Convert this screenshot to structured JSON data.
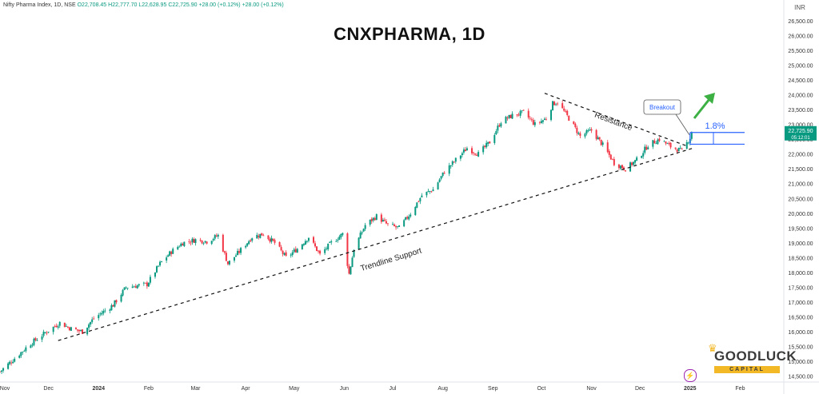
{
  "legend": {
    "symbol": "Nifty Pharma Index, 1D, NSE",
    "open": "O22,708.45",
    "high": "H22,777.70",
    "low": "L22,628.95",
    "close": "C22,725.90",
    "change": "+28.00 (+0.12%)",
    "change2": "+28.00 (+0.12%)"
  },
  "price_tag": {
    "price": "22,725.90",
    "countdown": "05:12:01"
  },
  "brand": {
    "name": "GOODLUCK",
    "sub": "CAPITAL"
  },
  "chart_data": {
    "type": "candlestick",
    "title": "CNXPHARMA, 1D",
    "currency": "INR",
    "ylim": [
      14300,
      27200
    ],
    "y_ticks": [
      14500,
      15000,
      15500,
      16000,
      16500,
      17000,
      17500,
      18000,
      18500,
      19000,
      19500,
      20000,
      20500,
      21000,
      21500,
      22000,
      22500,
      23000,
      23500,
      24000,
      24500,
      25000,
      25500,
      26000,
      26500
    ],
    "y_tick_labels": [
      "14,500.00",
      "15,000.00",
      "15,500.00",
      "16,000.00",
      "16,500.00",
      "17,000.00",
      "17,500.00",
      "18,000.00",
      "18,500.00",
      "19,000.00",
      "19,500.00",
      "20,000.00",
      "20,500.00",
      "21,000.00",
      "21,500.00",
      "22,000.00",
      "22,500.00",
      "23,000.00",
      "23,500.00",
      "24,000.00",
      "24,500.00",
      "25,000.00",
      "25,500.00",
      "26,000.00",
      "26,500.00"
    ],
    "x_labels": [
      "Nov",
      "Dec",
      "2024",
      "Feb",
      "Mar",
      "Apr",
      "May",
      "Jun",
      "Jul",
      "Aug",
      "Sep",
      "Oct",
      "Nov",
      "Dec",
      "2025",
      "Feb"
    ],
    "x_start": "2023-11-01",
    "x_end": "2025-02-28",
    "x_label_dates": [
      "2023-11-01",
      "2023-12-01",
      "2024-01-01",
      "2024-02-01",
      "2024-03-01",
      "2024-04-01",
      "2024-05-01",
      "2024-06-01",
      "2024-07-01",
      "2024-08-01",
      "2024-09-01",
      "2024-10-01",
      "2024-11-01",
      "2024-12-01",
      "2025-01-01",
      "2025-02-01"
    ],
    "close_path": [
      {
        "date": "2023-11-01",
        "close": 14650
      },
      {
        "date": "2023-11-10",
        "close": 15100
      },
      {
        "date": "2023-11-20",
        "close": 15600
      },
      {
        "date": "2023-11-30",
        "close": 16000
      },
      {
        "date": "2023-12-08",
        "close": 16300
      },
      {
        "date": "2023-12-15",
        "close": 16100
      },
      {
        "date": "2023-12-22",
        "close": 16000
      },
      {
        "date": "2023-12-29",
        "close": 16450
      },
      {
        "date": "2024-01-10",
        "close": 16900
      },
      {
        "date": "2024-01-18",
        "close": 17500
      },
      {
        "date": "2024-01-31",
        "close": 17600
      },
      {
        "date": "2024-02-08",
        "close": 18300
      },
      {
        "date": "2024-02-15",
        "close": 18700
      },
      {
        "date": "2024-02-22",
        "close": 19000
      },
      {
        "date": "2024-03-01",
        "close": 19100
      },
      {
        "date": "2024-03-08",
        "close": 19050
      },
      {
        "date": "2024-03-15",
        "close": 19250
      },
      {
        "date": "2024-03-21",
        "close": 18300
      },
      {
        "date": "2024-03-28",
        "close": 18700
      },
      {
        "date": "2024-04-05",
        "close": 19200
      },
      {
        "date": "2024-04-12",
        "close": 19300
      },
      {
        "date": "2024-04-19",
        "close": 19000
      },
      {
        "date": "2024-04-26",
        "close": 18500
      },
      {
        "date": "2024-05-03",
        "close": 18800
      },
      {
        "date": "2024-05-10",
        "close": 19200
      },
      {
        "date": "2024-05-17",
        "close": 18600
      },
      {
        "date": "2024-05-24",
        "close": 19000
      },
      {
        "date": "2024-05-31",
        "close": 19300
      },
      {
        "date": "2024-06-04",
        "close": 17950
      },
      {
        "date": "2024-06-07",
        "close": 18800
      },
      {
        "date": "2024-06-14",
        "close": 19600
      },
      {
        "date": "2024-06-21",
        "close": 19900
      },
      {
        "date": "2024-06-28",
        "close": 19600
      },
      {
        "date": "2024-07-05",
        "close": 19500
      },
      {
        "date": "2024-07-12",
        "close": 20000
      },
      {
        "date": "2024-07-19",
        "close": 20600
      },
      {
        "date": "2024-07-26",
        "close": 20800
      },
      {
        "date": "2024-08-02",
        "close": 21400
      },
      {
        "date": "2024-08-09",
        "close": 21800
      },
      {
        "date": "2024-08-16",
        "close": 22200
      },
      {
        "date": "2024-08-23",
        "close": 22000
      },
      {
        "date": "2024-08-30",
        "close": 22400
      },
      {
        "date": "2024-09-06",
        "close": 23100
      },
      {
        "date": "2024-09-13",
        "close": 23300
      },
      {
        "date": "2024-09-20",
        "close": 23400
      },
      {
        "date": "2024-09-27",
        "close": 23000
      },
      {
        "date": "2024-10-04",
        "close": 23200
      },
      {
        "date": "2024-10-08",
        "close": 23700
      },
      {
        "date": "2024-10-11",
        "close": 23750
      },
      {
        "date": "2024-10-18",
        "close": 23200
      },
      {
        "date": "2024-10-25",
        "close": 22600
      },
      {
        "date": "2024-11-01",
        "close": 22800
      },
      {
        "date": "2024-11-08",
        "close": 22300
      },
      {
        "date": "2024-11-15",
        "close": 21700
      },
      {
        "date": "2024-11-22",
        "close": 21500
      },
      {
        "date": "2024-11-29",
        "close": 21800
      },
      {
        "date": "2024-12-06",
        "close": 22300
      },
      {
        "date": "2024-12-13",
        "close": 22500
      },
      {
        "date": "2024-12-20",
        "close": 22250
      },
      {
        "date": "2024-12-27",
        "close": 22100
      },
      {
        "date": "2025-01-01",
        "close": 22550
      },
      {
        "date": "2025-01-02",
        "close": 22726
      }
    ],
    "annotations": {
      "resistance_label": "Resistance",
      "support_label": "Trendline Support",
      "breakout_label": "Breakout",
      "move_label": "1.8%",
      "resistance_line": [
        {
          "date": "2024-10-03",
          "price": 24050
        },
        {
          "date": "2024-12-31",
          "price": 22250
        }
      ],
      "support_line": [
        {
          "date": "2023-12-07",
          "price": 15700
        },
        {
          "date": "2025-01-03",
          "price": 22200
        }
      ],
      "box_top": 22726,
      "box_bottom": 22330
    },
    "grid": false,
    "legend": "top-left"
  }
}
